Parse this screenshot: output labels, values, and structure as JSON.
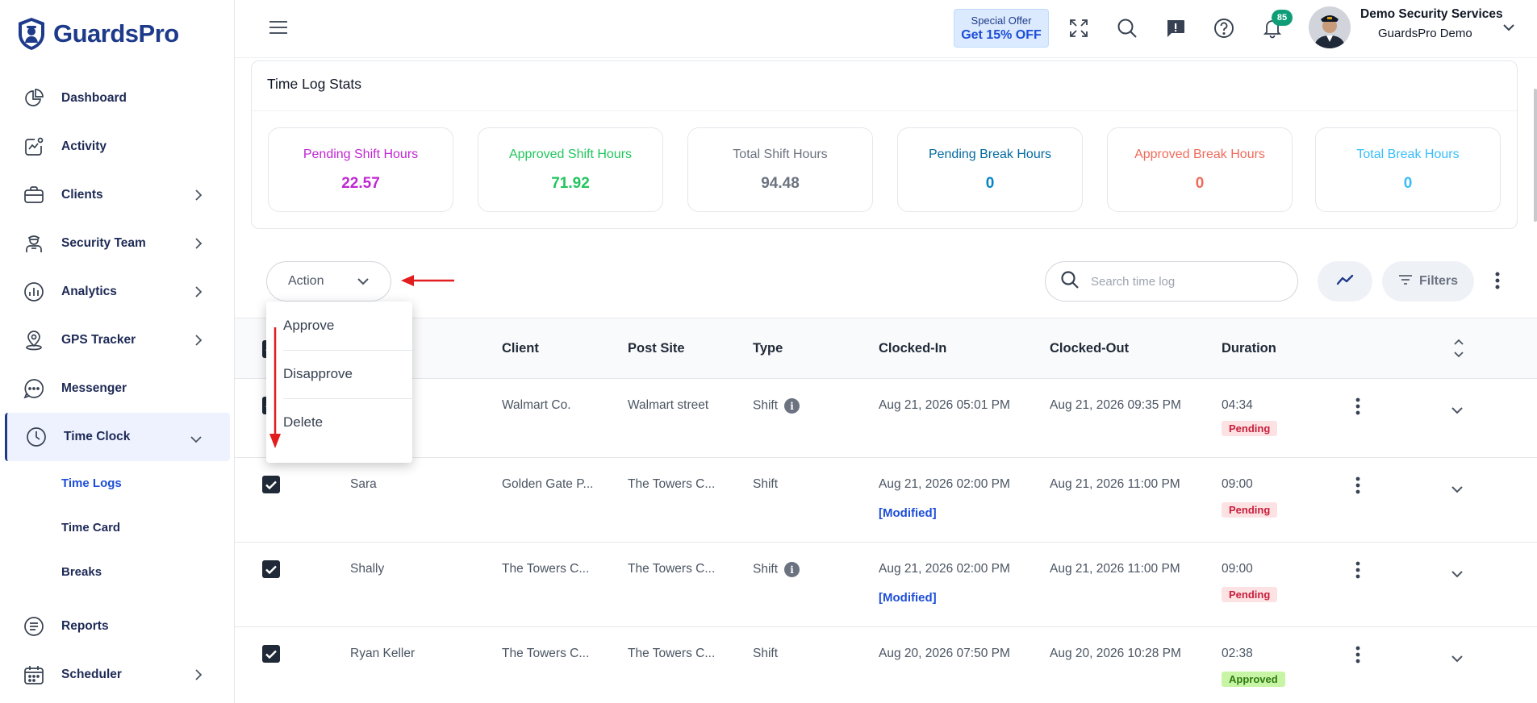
{
  "brand": {
    "name": "GuardsPro"
  },
  "sidebar": {
    "items": [
      {
        "label": "Dashboard",
        "icon": "pie-chart-icon",
        "has_children": false
      },
      {
        "label": "Activity",
        "icon": "activity-icon",
        "has_children": false
      },
      {
        "label": "Clients",
        "icon": "briefcase-icon",
        "has_children": true
      },
      {
        "label": "Security Team",
        "icon": "guard-icon",
        "has_children": true
      },
      {
        "label": "Analytics",
        "icon": "analytics-icon",
        "has_children": true
      },
      {
        "label": "GPS Tracker",
        "icon": "location-pin-icon",
        "has_children": true
      },
      {
        "label": "Messenger",
        "icon": "chat-icon",
        "has_children": false
      },
      {
        "label": "Time Clock",
        "icon": "clock-icon",
        "has_children": true,
        "active": true,
        "expanded": true
      }
    ],
    "sub_items": [
      {
        "label": "Time Logs",
        "current": true
      },
      {
        "label": "Time Card",
        "current": false
      },
      {
        "label": "Breaks",
        "current": false
      }
    ],
    "bottom_items": [
      {
        "label": "Reports",
        "icon": "report-icon",
        "has_children": false
      },
      {
        "label": "Scheduler",
        "icon": "calendar-icon",
        "has_children": true
      }
    ]
  },
  "topbar": {
    "offer": {
      "line1": "Special Offer",
      "line2": "Get 15% OFF"
    },
    "notification_count": "85",
    "user": {
      "name": "Demo Security Services",
      "org": "GuardsPro Demo"
    }
  },
  "stats": {
    "title": "Time Log Stats",
    "cards": [
      {
        "label": "Pending Shift Hours",
        "value": "22.57",
        "label_color": "#c026d3",
        "value_color": "#c026d3"
      },
      {
        "label": "Approved Shift Hours",
        "value": "71.92",
        "label_color": "#22c55e",
        "value_color": "#22c55e"
      },
      {
        "label": "Total Shift Hours",
        "value": "94.48",
        "label_color": "#6b7280",
        "value_color": "#6b7280"
      },
      {
        "label": "Pending Break Hours",
        "value": "0",
        "label_color": "#0369a1",
        "value_color": "#0284c7"
      },
      {
        "label": "Approved Break Hours",
        "value": "0",
        "label_color": "#ef6b5b",
        "value_color": "#ef6b5b"
      },
      {
        "label": "Total Break Hours",
        "value": "0",
        "label_color": "#38bdf8",
        "value_color": "#38bdf8"
      }
    ]
  },
  "toolbar": {
    "action_label": "Action",
    "search_placeholder": "Search time log",
    "filters_label": "Filters"
  },
  "action_menu": [
    "Approve",
    "Disapprove",
    "Delete"
  ],
  "table": {
    "headers": {
      "client": "Client",
      "post_site": "Post Site",
      "type": "Type",
      "clocked_in": "Clocked-In",
      "clocked_out": "Clocked-Out",
      "duration": "Duration"
    },
    "rows": [
      {
        "name": "",
        "client": "Walmart Co.",
        "post_site": "Walmart street",
        "type": "Shift",
        "info": true,
        "clocked_in": "Aug 21, 2026 05:01 PM",
        "modified": "",
        "clocked_out": "Aug 21, 2026 09:35 PM",
        "duration": "04:34",
        "status": "Pending"
      },
      {
        "name": "Sara",
        "client": "Golden Gate P...",
        "post_site": "The Towers C...",
        "type": "Shift",
        "info": false,
        "clocked_in": "Aug 21, 2026 02:00 PM",
        "modified": "[Modified]",
        "clocked_out": "Aug 21, 2026 11:00 PM",
        "duration": "09:00",
        "status": "Pending"
      },
      {
        "name": "Shally",
        "client": "The Towers C...",
        "post_site": "The Towers C...",
        "type": "Shift",
        "info": true,
        "clocked_in": "Aug 21, 2026 02:00 PM",
        "modified": "[Modified]",
        "clocked_out": "Aug 21, 2026 11:00 PM",
        "duration": "09:00",
        "status": "Pending"
      },
      {
        "name": "Ryan Keller",
        "client": "The Towers C...",
        "post_site": "The Towers C...",
        "type": "Shift",
        "info": false,
        "clocked_in": "Aug 20, 2026 07:50 PM",
        "modified": "",
        "clocked_out": "Aug 20, 2026 10:28 PM",
        "duration": "02:38",
        "status": "Approved"
      }
    ]
  },
  "annotation_color": "#e11d1d"
}
